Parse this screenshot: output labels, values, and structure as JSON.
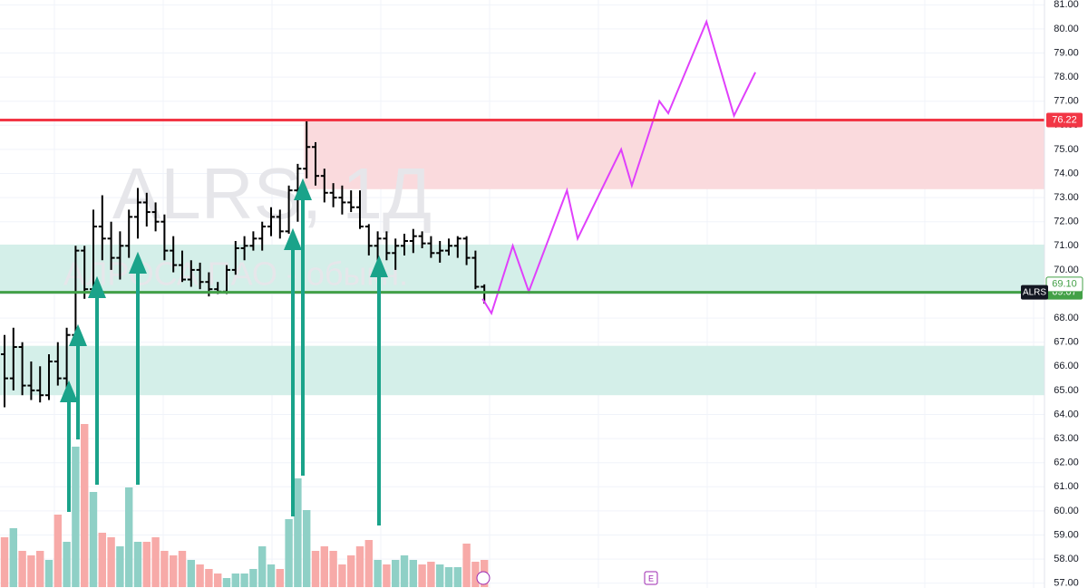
{
  "chart_data": {
    "type": "ohlc",
    "watermark": "ALRS, 1Д",
    "watermark_sub": "АЛРОСА ПАО - обыкн.",
    "symbol": "ALRS",
    "earnings_marker": "E",
    "bar_color": "#000000",
    "up_volume_color": "#8fd0c6",
    "down_volume_color": "#f7aaa8",
    "ylim": [
      56.8,
      81.2
    ],
    "yticks": [
      {
        "value": 57,
        "label": "57.00"
      },
      {
        "value": 58,
        "label": "58.00"
      },
      {
        "value": 59,
        "label": "59.00"
      },
      {
        "value": 60,
        "label": "60.00"
      },
      {
        "value": 61,
        "label": "61.00"
      },
      {
        "value": 62,
        "label": "62.00"
      },
      {
        "value": 63,
        "label": "63.00"
      },
      {
        "value": 64,
        "label": "64.00"
      },
      {
        "value": 65,
        "label": "65.00"
      },
      {
        "value": 66,
        "label": "66.00"
      },
      {
        "value": 67,
        "label": "67.00"
      },
      {
        "value": 68,
        "label": "68.00"
      },
      {
        "value": 69,
        "label": "69.00"
      },
      {
        "value": 70,
        "label": "70.00"
      },
      {
        "value": 71,
        "label": "71.00"
      },
      {
        "value": 72,
        "label": "72.00"
      },
      {
        "value": 73,
        "label": "73.00"
      },
      {
        "value": 74,
        "label": "74.00"
      },
      {
        "value": 75,
        "label": "75.00"
      },
      {
        "value": 76,
        "label": "76.00"
      },
      {
        "value": 77,
        "label": "77.00"
      },
      {
        "value": 78,
        "label": "78.00"
      },
      {
        "value": 79,
        "label": "79.00"
      },
      {
        "value": 80,
        "label": "80.00"
      },
      {
        "value": 81,
        "label": "81.00"
      }
    ],
    "grid": true,
    "ohlc": [
      [
        66.5,
        67.3,
        64.3,
        65.5
      ],
      [
        65.5,
        67.6,
        65.0,
        66.8
      ],
      [
        66.8,
        67.0,
        64.8,
        65.2
      ],
      [
        65.2,
        66.2,
        64.6,
        65.0
      ],
      [
        65.0,
        66.0,
        64.5,
        64.8
      ],
      [
        64.8,
        66.5,
        64.6,
        66.2
      ],
      [
        66.2,
        67.0,
        65.2,
        65.5
      ],
      [
        65.5,
        67.6,
        65.0,
        67.3
      ],
      [
        67.3,
        71.0,
        67.0,
        70.8
      ],
      [
        70.8,
        71.0,
        68.8,
        69.2
      ],
      [
        69.2,
        72.5,
        69.0,
        71.8
      ],
      [
        71.8,
        73.1,
        70.4,
        71.3
      ],
      [
        71.3,
        72.0,
        70.0,
        70.5
      ],
      [
        70.5,
        71.6,
        69.6,
        71.0
      ],
      [
        71.0,
        72.5,
        70.5,
        72.2
      ],
      [
        72.2,
        73.4,
        71.3,
        72.8
      ],
      [
        72.8,
        73.2,
        71.8,
        72.4
      ],
      [
        72.4,
        72.8,
        71.6,
        72.0
      ],
      [
        72.0,
        72.3,
        70.4,
        70.8
      ],
      [
        70.8,
        71.4,
        69.9,
        70.2
      ],
      [
        70.2,
        70.8,
        69.5,
        69.6
      ],
      [
        69.6,
        70.4,
        69.3,
        70.0
      ],
      [
        70.0,
        70.3,
        69.2,
        69.5
      ],
      [
        69.5,
        69.9,
        68.9,
        69.2
      ],
      [
        69.2,
        69.5,
        69.0,
        69.1
      ],
      [
        69.1,
        70.2,
        69.0,
        70.0
      ],
      [
        70.0,
        71.2,
        69.8,
        70.9
      ],
      [
        70.9,
        71.4,
        70.4,
        71.0
      ],
      [
        71.0,
        71.6,
        70.8,
        71.3
      ],
      [
        71.3,
        72.0,
        70.8,
        71.8
      ],
      [
        71.8,
        72.6,
        71.4,
        72.2
      ],
      [
        72.2,
        72.5,
        71.3,
        71.6
      ],
      [
        71.6,
        73.5,
        71.5,
        73.3
      ],
      [
        73.3,
        74.4,
        72.0,
        74.2
      ],
      [
        74.2,
        76.2,
        73.8,
        75.1
      ],
      [
        75.1,
        75.3,
        73.5,
        73.9
      ],
      [
        73.9,
        74.2,
        72.8,
        73.2
      ],
      [
        73.2,
        73.6,
        72.6,
        73.0
      ],
      [
        73.0,
        73.5,
        72.3,
        72.8
      ],
      [
        72.8,
        73.3,
        72.4,
        72.6
      ],
      [
        72.6,
        73.3,
        71.7,
        71.8
      ],
      [
        71.8,
        71.9,
        70.6,
        71.0
      ],
      [
        71.0,
        71.6,
        70.3,
        71.3
      ],
      [
        71.3,
        71.6,
        70.4,
        70.7
      ],
      [
        70.7,
        71.3,
        70.0,
        71.0
      ],
      [
        71.0,
        71.5,
        70.6,
        71.2
      ],
      [
        71.2,
        71.7,
        70.7,
        71.4
      ],
      [
        71.4,
        71.6,
        70.9,
        71.1
      ],
      [
        71.1,
        71.4,
        70.5,
        70.7
      ],
      [
        70.7,
        71.2,
        70.3,
        70.8
      ],
      [
        70.8,
        71.3,
        70.6,
        71.0
      ],
      [
        71.0,
        71.4,
        70.5,
        71.3
      ],
      [
        71.3,
        71.4,
        70.2,
        70.5
      ],
      [
        70.5,
        70.8,
        69.2,
        69.3
      ],
      [
        69.3,
        69.4,
        68.6,
        69.07
      ]
    ],
    "volume": [
      55,
      65,
      40,
      35,
      40,
      30,
      80,
      50,
      155,
      180,
      105,
      60,
      55,
      45,
      110,
      50,
      50,
      55,
      40,
      35,
      40,
      30,
      25,
      20,
      15,
      10,
      15,
      15,
      20,
      45,
      25,
      20,
      75,
      120,
      85,
      40,
      45,
      40,
      25,
      35,
      45,
      52,
      30,
      25,
      30,
      35,
      30,
      25,
      28,
      25,
      22,
      22,
      48,
      28,
      30
    ],
    "zones": [
      {
        "low": 73.35,
        "high": 76.22,
        "start": 33.7,
        "color": "#fadadd"
      },
      {
        "low": 69.1,
        "high": 71.05,
        "start": -1,
        "color": "#d4efe9"
      },
      {
        "low": 64.8,
        "high": 66.85,
        "start": -1,
        "color": "#d4efe9"
      }
    ],
    "levels": [
      {
        "value": 76.22,
        "color": "#f23645"
      },
      {
        "value": 69.07,
        "color": "#43a047"
      }
    ],
    "price_labels": [
      {
        "value": 69.1,
        "label": "69.10",
        "color": "#43a047"
      }
    ],
    "forecast": {
      "color": "#e040fb",
      "x": [
        53.8,
        54.8,
        57.2,
        59.0,
        63.3,
        64.5,
        69.4,
        70.6,
        73.7,
        74.7,
        79.0,
        82.1,
        84.5
      ],
      "values": [
        68.8,
        68.2,
        71.0,
        69.1,
        73.3,
        71.3,
        75.0,
        73.5,
        77.0,
        76.5,
        80.3,
        76.4,
        78.2
      ]
    }
  }
}
